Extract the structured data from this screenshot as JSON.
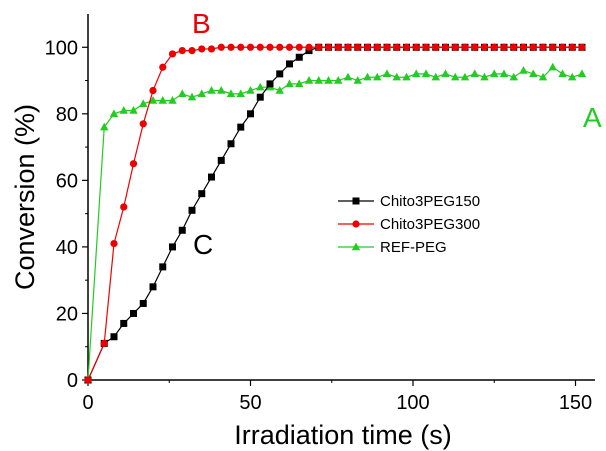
{
  "chart_data": {
    "type": "line",
    "title": "",
    "xlabel": "Irradiation time (s)",
    "ylabel": "Conversion (%)",
    "xlim": [
      0,
      156
    ],
    "ylim": [
      0,
      110
    ],
    "xticks": [
      0,
      50,
      100,
      150
    ],
    "yticks": [
      0,
      20,
      40,
      60,
      80,
      100
    ],
    "x_tick_labels": [
      "0",
      "50",
      "100",
      "150"
    ],
    "y_tick_labels": [
      "0",
      "20",
      "40",
      "60",
      "80",
      "100"
    ],
    "legend_position": "center-right",
    "series": [
      {
        "name": "Chito3PEG150",
        "label": "C",
        "color": "#000000",
        "marker": "square",
        "x": [
          0,
          5,
          8,
          11,
          14,
          17,
          20,
          23,
          26,
          29,
          32,
          35,
          38,
          41,
          44,
          47,
          50,
          53,
          56,
          59,
          62,
          65,
          68,
          71,
          74,
          77,
          80,
          83,
          86,
          89,
          92,
          95,
          98,
          101,
          104,
          107,
          110,
          113,
          116,
          119,
          122,
          125,
          128,
          131,
          134,
          137,
          140,
          143,
          146,
          149,
          152
        ],
        "y": [
          0,
          11,
          13,
          17,
          20,
          23,
          28,
          34,
          40,
          45,
          51,
          56,
          61,
          66,
          71,
          76,
          80,
          85,
          89,
          92,
          95,
          97,
          99,
          100,
          100,
          100,
          100,
          100,
          100,
          100,
          100,
          100,
          100,
          100,
          100,
          100,
          100,
          100,
          100,
          100,
          100,
          100,
          100,
          100,
          100,
          100,
          100,
          100,
          100,
          100,
          100
        ]
      },
      {
        "name": "Chito3PEG300",
        "label": "B",
        "color": "#ee0000",
        "marker": "circle",
        "x": [
          0,
          5,
          8,
          11,
          14,
          17,
          20,
          23,
          26,
          29,
          32,
          35,
          38,
          41,
          44,
          47,
          50,
          53,
          56,
          59,
          62,
          65,
          68,
          71,
          74,
          77,
          80,
          83,
          86,
          89,
          92,
          95,
          98,
          101,
          104,
          107,
          110,
          113,
          116,
          119,
          122,
          125,
          128,
          131,
          134,
          137,
          140,
          143,
          146,
          149,
          152
        ],
        "y": [
          0,
          11,
          41,
          52,
          65,
          77,
          87,
          94,
          98,
          99,
          99,
          99.5,
          99.5,
          100,
          100,
          100,
          100,
          100,
          100,
          100,
          100,
          100,
          100,
          100,
          100,
          100,
          100,
          100,
          100,
          100,
          100,
          100,
          100,
          100,
          100,
          100,
          100,
          100,
          100,
          100,
          100,
          100,
          100,
          100,
          100,
          100,
          100,
          100,
          100,
          100,
          100
        ]
      },
      {
        "name": "REF-PEG",
        "label": "A",
        "color": "#22cc22",
        "marker": "triangle",
        "x": [
          0,
          5,
          8,
          11,
          14,
          17,
          20,
          23,
          26,
          29,
          32,
          35,
          38,
          41,
          44,
          47,
          50,
          53,
          56,
          59,
          62,
          65,
          68,
          71,
          74,
          77,
          80,
          83,
          86,
          89,
          92,
          95,
          98,
          101,
          104,
          107,
          110,
          113,
          116,
          119,
          122,
          125,
          128,
          131,
          134,
          137,
          140,
          143,
          146,
          149,
          152
        ],
        "y": [
          0,
          76,
          80,
          81,
          81,
          83,
          84,
          84,
          84,
          86,
          85,
          86,
          87,
          87,
          86,
          86,
          87,
          88,
          88,
          87,
          89,
          89,
          90,
          90,
          90,
          90,
          91,
          90,
          91,
          91,
          92,
          91,
          91,
          92,
          92,
          91,
          92,
          91,
          91,
          92,
          91,
          92,
          92,
          91,
          93,
          92,
          91,
          94,
          92,
          91,
          92
        ]
      }
    ]
  }
}
